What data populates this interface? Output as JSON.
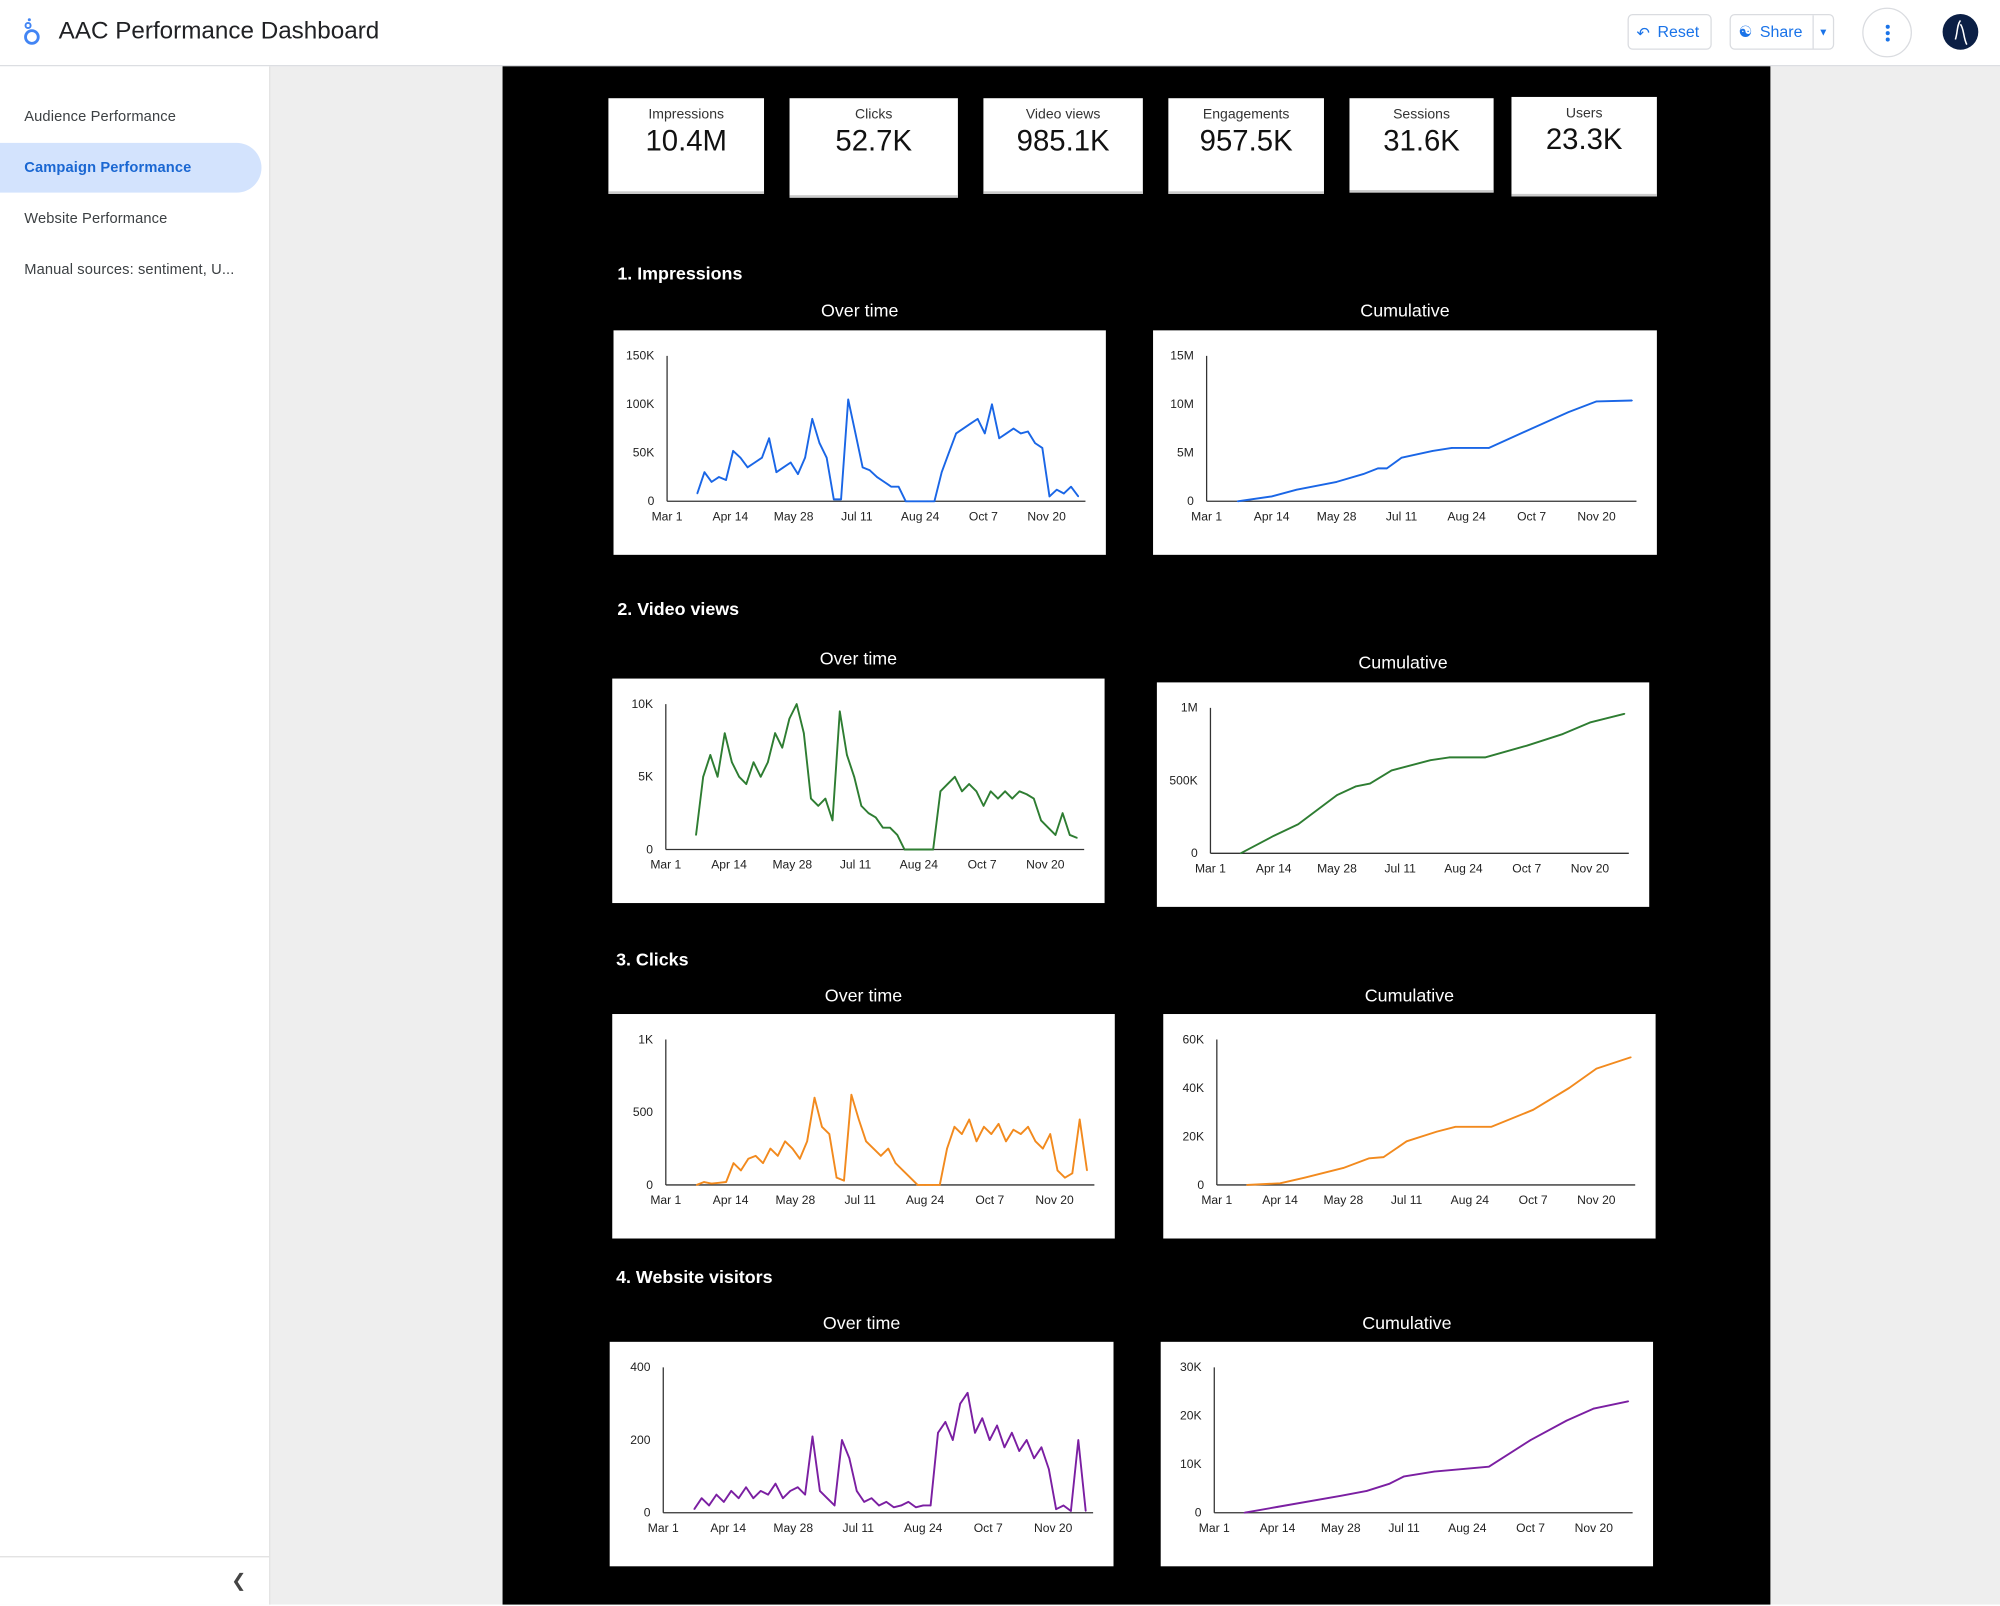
{
  "header": {
    "title": "AAC Performance Dashboard",
    "reset_label": "Reset",
    "share_label": "Share",
    "icons": [
      "looker-studio-logo",
      "undo-icon",
      "person-add-icon",
      "caret-down-icon",
      "more-vert-icon",
      "avatar"
    ]
  },
  "sidebar": {
    "items": [
      {
        "label": "Audience Performance",
        "active": false
      },
      {
        "label": "Campaign Performance",
        "active": true
      },
      {
        "label": "Website Performance",
        "active": false
      },
      {
        "label": "Manual sources: sentiment, U..."
      }
    ]
  },
  "kpis": [
    {
      "label": "Impressions",
      "value": "10.4M"
    },
    {
      "label": "Clicks",
      "value": "52.7K"
    },
    {
      "label": "Video views",
      "value": "985.1K"
    },
    {
      "label": "Engagements",
      "value": "957.5K"
    },
    {
      "label": "Sessions",
      "value": "31.6K"
    },
    {
      "label": "Users",
      "value": "23.3K"
    }
  ],
  "sections": [
    {
      "title": "1. Impressions",
      "left_title": "Over time",
      "right_title": "Cumulative"
    },
    {
      "title": "2. Video views",
      "left_title": "Over time",
      "right_title": "Cumulative"
    },
    {
      "title": "3. Clicks",
      "left_title": "Over time",
      "right_title": "Cumulative"
    },
    {
      "title": "4. Website visitors",
      "left_title": "Over time",
      "right_title": "Cumulative"
    }
  ],
  "chart_data": [
    {
      "type": "line",
      "title": "Over time",
      "color": "#1a66e6",
      "xlim": [
        "Mar 1",
        "Dec 17"
      ],
      "xticks": [
        "Mar 1",
        "Apr 14",
        "May 28",
        "Jul 11",
        "Aug 24",
        "Oct 7",
        "Nov 20"
      ],
      "ylim": [
        0,
        150000
      ],
      "yticks": [
        {
          "v": 0,
          "label": "0"
        },
        {
          "v": 50000,
          "label": "50K"
        },
        {
          "v": 100000,
          "label": "100K"
        },
        {
          "v": 150000,
          "label": "150K"
        }
      ],
      "x": [
        "Mar 22",
        "Mar 27",
        "Apr 1",
        "Apr 6",
        "Apr 11",
        "Apr 16",
        "Apr 21",
        "Apr 26",
        "May 1",
        "May 6",
        "May 11",
        "May 16",
        "May 21",
        "May 26",
        "May 31",
        "Jun 5",
        "Jun 10",
        "Jun 15",
        "Jun 20",
        "Jun 25",
        "Jun 30",
        "Jul 5",
        "Jul 10",
        "Jul 15",
        "Jul 20",
        "Jul 25",
        "Jul 30",
        "Aug 4",
        "Aug 9",
        "Aug 14",
        "Aug 19",
        "Aug 24",
        "Aug 29",
        "Sep 3",
        "Sep 8",
        "Sep 13",
        "Sep 18",
        "Sep 23",
        "Sep 28",
        "Oct 3",
        "Oct 8",
        "Oct 13",
        "Oct 18",
        "Oct 23",
        "Oct 28",
        "Nov 2",
        "Nov 7",
        "Nov 12",
        "Nov 17",
        "Nov 22",
        "Nov 27",
        "Dec 2",
        "Dec 7",
        "Dec 12"
      ],
      "values": [
        8000,
        30000,
        20000,
        25000,
        22000,
        52000,
        45000,
        35000,
        40000,
        45000,
        65000,
        30000,
        35000,
        40000,
        28000,
        45000,
        85000,
        60000,
        45000,
        2000,
        2000,
        105000,
        70000,
        35000,
        32000,
        25000,
        20000,
        15000,
        15000,
        0,
        0,
        0,
        0,
        0,
        30000,
        50000,
        70000,
        75000,
        80000,
        85000,
        70000,
        100000,
        65000,
        70000,
        75000,
        70000,
        72000,
        60000,
        55000,
        5000,
        12000,
        8000,
        15000,
        5000
      ]
    },
    {
      "type": "line",
      "title": "Cumulative",
      "color": "#1a66e6",
      "xlim": [
        "Mar 1",
        "Dec 17"
      ],
      "xticks": [
        "Mar 1",
        "Apr 14",
        "May 28",
        "Jul 11",
        "Aug 24",
        "Oct 7",
        "Nov 20"
      ],
      "ylim": [
        0,
        15000000
      ],
      "yticks": [
        {
          "v": 0,
          "label": "0"
        },
        {
          "v": 5000000,
          "label": "5M"
        },
        {
          "v": 10000000,
          "label": "10M"
        },
        {
          "v": 15000000,
          "label": "15M"
        }
      ],
      "x": [
        "Mar 22",
        "Apr 14",
        "May 1",
        "May 28",
        "Jun 15",
        "Jun 25",
        "Jul 1",
        "Jul 11",
        "Aug 1",
        "Aug 14",
        "Sep 8",
        "Oct 7",
        "Nov 1",
        "Nov 20",
        "Dec 14"
      ],
      "values": [
        0,
        500000,
        1200000,
        2000000,
        2800000,
        3400000,
        3400000,
        4500000,
        5200000,
        5500000,
        5500000,
        7500000,
        9200000,
        10300000,
        10400000
      ]
    },
    {
      "type": "line",
      "title": "Over time",
      "color": "#2e7d32",
      "xlim": [
        "Mar 1",
        "Dec 17"
      ],
      "xticks": [
        "Mar 1",
        "Apr 14",
        "May 28",
        "Jul 11",
        "Aug 24",
        "Oct 7",
        "Nov 20"
      ],
      "ylim": [
        0,
        10000
      ],
      "yticks": [
        {
          "v": 0,
          "label": "0"
        },
        {
          "v": 5000,
          "label": "5K"
        },
        {
          "v": 10000,
          "label": "10K"
        }
      ],
      "x": [
        "Mar 22",
        "Mar 27",
        "Apr 1",
        "Apr 6",
        "Apr 11",
        "Apr 16",
        "Apr 21",
        "Apr 26",
        "May 1",
        "May 6",
        "May 11",
        "May 16",
        "May 21",
        "May 26",
        "May 31",
        "Jun 5",
        "Jun 10",
        "Jun 15",
        "Jun 20",
        "Jun 25",
        "Jun 30",
        "Jul 5",
        "Jul 10",
        "Jul 15",
        "Jul 20",
        "Jul 25",
        "Jul 30",
        "Aug 4",
        "Aug 9",
        "Aug 14",
        "Aug 19",
        "Aug 24",
        "Aug 29",
        "Sep 3",
        "Sep 8",
        "Sep 13",
        "Sep 18",
        "Sep 23",
        "Sep 28",
        "Oct 3",
        "Oct 8",
        "Oct 13",
        "Oct 18",
        "Oct 23",
        "Oct 28",
        "Nov 2",
        "Nov 7",
        "Nov 12",
        "Nov 17",
        "Nov 22",
        "Nov 27",
        "Dec 2",
        "Dec 7",
        "Dec 12"
      ],
      "values": [
        1000,
        5000,
        6500,
        5000,
        8000,
        6000,
        5000,
        4500,
        6000,
        5000,
        6000,
        8000,
        7000,
        9000,
        10000,
        8000,
        3500,
        3000,
        3500,
        2000,
        9500,
        6500,
        5000,
        3000,
        2500,
        2200,
        1500,
        1500,
        1000,
        0,
        0,
        0,
        0,
        0,
        4000,
        4500,
        5000,
        4000,
        4500,
        4000,
        3000,
        4000,
        3500,
        4000,
        3500,
        4000,
        3800,
        3500,
        2000,
        1500,
        1000,
        2500,
        1000,
        800
      ]
    },
    {
      "type": "line",
      "title": "Cumulative",
      "color": "#2e7d32",
      "xlim": [
        "Mar 1",
        "Dec 17"
      ],
      "xticks": [
        "Mar 1",
        "Apr 14",
        "May 28",
        "Jul 11",
        "Aug 24",
        "Oct 7",
        "Nov 20"
      ],
      "ylim": [
        0,
        1000000
      ],
      "yticks": [
        {
          "v": 0,
          "label": "0"
        },
        {
          "v": 500000,
          "label": "500K"
        },
        {
          "v": 1000000,
          "label": "1M"
        }
      ],
      "x": [
        "Mar 22",
        "Apr 14",
        "May 1",
        "May 28",
        "Jun 10",
        "Jun 20",
        "Jul 5",
        "Aug 1",
        "Aug 14",
        "Sep 8",
        "Oct 7",
        "Nov 1",
        "Nov 20",
        "Dec 14"
      ],
      "values": [
        0,
        120000,
        200000,
        400000,
        460000,
        480000,
        570000,
        640000,
        660000,
        660000,
        740000,
        820000,
        900000,
        960000
      ]
    },
    {
      "type": "line",
      "title": "Over time",
      "color": "#f28a1e",
      "xlim": [
        "Mar 1",
        "Dec 17"
      ],
      "xticks": [
        "Mar 1",
        "Apr 14",
        "May 28",
        "Jul 11",
        "Aug 24",
        "Oct 7",
        "Nov 20"
      ],
      "ylim": [
        0,
        1000
      ],
      "yticks": [
        {
          "v": 0,
          "label": "0"
        },
        {
          "v": 500,
          "label": "500"
        },
        {
          "v": 1000,
          "label": "1K"
        }
      ],
      "x": [
        "Mar 22",
        "Mar 27",
        "Apr 1",
        "Apr 6",
        "Apr 11",
        "Apr 16",
        "Apr 21",
        "Apr 26",
        "May 1",
        "May 6",
        "May 11",
        "May 16",
        "May 21",
        "May 26",
        "May 31",
        "Jun 5",
        "Jun 10",
        "Jun 15",
        "Jun 20",
        "Jun 25",
        "Jun 30",
        "Jul 5",
        "Jul 10",
        "Jul 15",
        "Jul 20",
        "Jul 25",
        "Jul 30",
        "Aug 4",
        "Aug 9",
        "Aug 14",
        "Aug 19",
        "Aug 24",
        "Aug 29",
        "Sep 3",
        "Sep 8",
        "Sep 13",
        "Sep 18",
        "Sep 23",
        "Sep 28",
        "Oct 3",
        "Oct 8",
        "Oct 13",
        "Oct 18",
        "Oct 23",
        "Oct 28",
        "Nov 2",
        "Nov 7",
        "Nov 12",
        "Nov 17",
        "Nov 22",
        "Nov 27",
        "Dec 2",
        "Dec 7",
        "Dec 12"
      ],
      "values": [
        0,
        20,
        10,
        15,
        20,
        150,
        100,
        180,
        200,
        150,
        250,
        200,
        300,
        250,
        180,
        300,
        600,
        400,
        350,
        50,
        30,
        620,
        450,
        300,
        250,
        200,
        250,
        150,
        100,
        50,
        0,
        0,
        0,
        0,
        250,
        400,
        350,
        450,
        300,
        400,
        350,
        420,
        300,
        380,
        350,
        400,
        300,
        250,
        350,
        100,
        50,
        80,
        450,
        100
      ]
    },
    {
      "type": "line",
      "title": "Cumulative",
      "color": "#f28a1e",
      "xlim": [
        "Mar 1",
        "Dec 17"
      ],
      "xticks": [
        "Mar 1",
        "Apr 14",
        "May 28",
        "Jul 11",
        "Aug 24",
        "Oct 7",
        "Nov 20"
      ],
      "ylim": [
        0,
        60000
      ],
      "yticks": [
        {
          "v": 0,
          "label": "0"
        },
        {
          "v": 20000,
          "label": "20K"
        },
        {
          "v": 40000,
          "label": "40K"
        },
        {
          "v": 60000,
          "label": "60K"
        }
      ],
      "x": [
        "Mar 22",
        "Apr 14",
        "May 1",
        "May 28",
        "Jun 15",
        "Jun 25",
        "Jul 11",
        "Aug 1",
        "Aug 14",
        "Sep 8",
        "Oct 7",
        "Nov 1",
        "Nov 20",
        "Dec 14"
      ],
      "values": [
        0,
        700,
        3000,
        7000,
        11000,
        11500,
        18000,
        22000,
        24000,
        24000,
        31000,
        40000,
        48000,
        52700
      ]
    },
    {
      "type": "line",
      "title": "Over time",
      "color": "#7b1fa2",
      "xlim": [
        "Mar 1",
        "Dec 17"
      ],
      "xticks": [
        "Mar 1",
        "Apr 14",
        "May 28",
        "Jul 11",
        "Aug 24",
        "Oct 7",
        "Nov 20"
      ],
      "ylim": [
        0,
        400
      ],
      "yticks": [
        {
          "v": 0,
          "label": "0"
        },
        {
          "v": 200,
          "label": "200"
        },
        {
          "v": 400,
          "label": "400"
        }
      ],
      "x": [
        "Mar 22",
        "Mar 27",
        "Apr 1",
        "Apr 6",
        "Apr 11",
        "Apr 16",
        "Apr 21",
        "Apr 26",
        "May 1",
        "May 6",
        "May 11",
        "May 16",
        "May 21",
        "May 26",
        "May 31",
        "Jun 5",
        "Jun 10",
        "Jun 15",
        "Jun 20",
        "Jun 25",
        "Jun 30",
        "Jul 5",
        "Jul 10",
        "Jul 15",
        "Jul 20",
        "Jul 25",
        "Jul 30",
        "Aug 4",
        "Aug 9",
        "Aug 14",
        "Aug 19",
        "Aug 24",
        "Aug 29",
        "Sep 3",
        "Sep 8",
        "Sep 13",
        "Sep 18",
        "Sep 23",
        "Sep 28",
        "Oct 3",
        "Oct 8",
        "Oct 13",
        "Oct 18",
        "Oct 23",
        "Oct 28",
        "Nov 2",
        "Nov 7",
        "Nov 12",
        "Nov 17",
        "Nov 22",
        "Nov 27",
        "Dec 2",
        "Dec 7",
        "Dec 12"
      ],
      "values": [
        10,
        40,
        20,
        50,
        30,
        60,
        40,
        70,
        40,
        60,
        50,
        80,
        40,
        60,
        70,
        50,
        210,
        60,
        40,
        20,
        200,
        150,
        60,
        30,
        40,
        20,
        30,
        15,
        20,
        30,
        15,
        20,
        20,
        220,
        250,
        200,
        300,
        330,
        220,
        260,
        200,
        240,
        180,
        220,
        170,
        200,
        150,
        180,
        120,
        10,
        20,
        5,
        200,
        5
      ]
    },
    {
      "type": "line",
      "title": "Cumulative",
      "color": "#7b1fa2",
      "xlim": [
        "Mar 1",
        "Dec 17"
      ],
      "xticks": [
        "Mar 1",
        "Apr 14",
        "May 28",
        "Jul 11",
        "Aug 24",
        "Oct 7",
        "Nov 20"
      ],
      "ylim": [
        0,
        30000
      ],
      "yticks": [
        {
          "v": 0,
          "label": "0"
        },
        {
          "v": 10000,
          "label": "10K"
        },
        {
          "v": 20000,
          "label": "20K"
        },
        {
          "v": 30000,
          "label": "30K"
        }
      ],
      "x": [
        "Mar 22",
        "Apr 14",
        "May 28",
        "Jun 15",
        "Jul 1",
        "Jul 11",
        "Aug 1",
        "Sep 8",
        "Oct 7",
        "Nov 1",
        "Nov 20",
        "Dec 14"
      ],
      "values": [
        0,
        1200,
        3500,
        4500,
        6000,
        7500,
        8500,
        9500,
        15000,
        19000,
        21500,
        23000
      ]
    }
  ]
}
